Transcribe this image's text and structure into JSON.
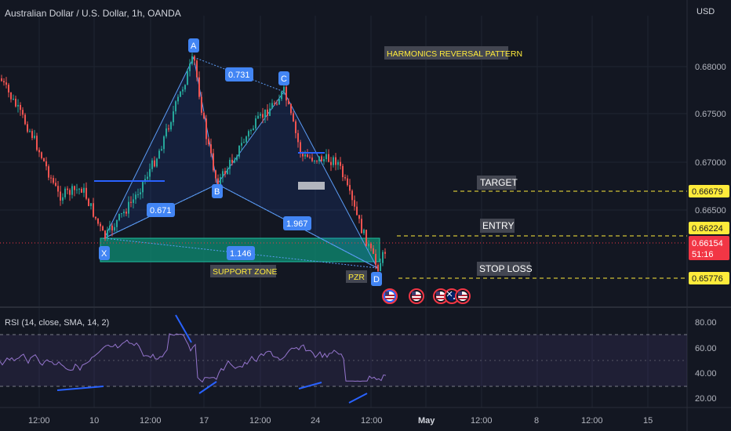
{
  "header": {
    "title": "Australian Dollar / U.S. Dollar, 1h, OANDA",
    "currency": "USD"
  },
  "price_axis": {
    "ticks": [
      "0.68000",
      "0.67500",
      "0.67000",
      "0.66500"
    ],
    "tick_values": [
      0.68,
      0.675,
      0.67,
      0.665
    ]
  },
  "price_labels": {
    "target": "0.66679",
    "entry": "0.66224",
    "current": "0.66154",
    "countdown": "51:16",
    "stop": "0.65776"
  },
  "pattern": {
    "title": "HARMONICS REVERSAL PATTERN",
    "points": {
      "X": "X",
      "A": "A",
      "B": "B",
      "C": "C",
      "D": "D"
    },
    "ratios": {
      "xb": "0.671",
      "ac": "0.731",
      "bd": "1.967",
      "xd": "1.146"
    },
    "support_zone": "SUPPORT ZONE",
    "pzr": "PZR",
    "target": "TARGET",
    "entry": "ENTRY",
    "stop_loss": "STOP LOSS"
  },
  "rsi": {
    "title": "RSI (14, close, SMA, 14, 2)",
    "ticks": [
      "80.00",
      "60.00",
      "40.00",
      "20.00"
    ]
  },
  "time_axis": [
    "12:00",
    "10",
    "12:00",
    "17",
    "12:00",
    "24",
    "12:00",
    "May",
    "12:00",
    "8",
    "12:00",
    "15"
  ],
  "colors": {
    "background": "#131722",
    "up": "#26a69a",
    "down": "#ef5350",
    "pattern_line": "#5b9cf6",
    "zone": "#0e8f74",
    "rsi_line": "#7e57c2",
    "level_line": "#ffeb3b",
    "price_tag_bg": "#ffeb3b",
    "current_tag": "#f23645"
  },
  "icons": [
    "us-flag-icon",
    "us-flag-icon",
    "us-flag-icon",
    "au-flag-icon",
    "us-flag-icon"
  ]
}
